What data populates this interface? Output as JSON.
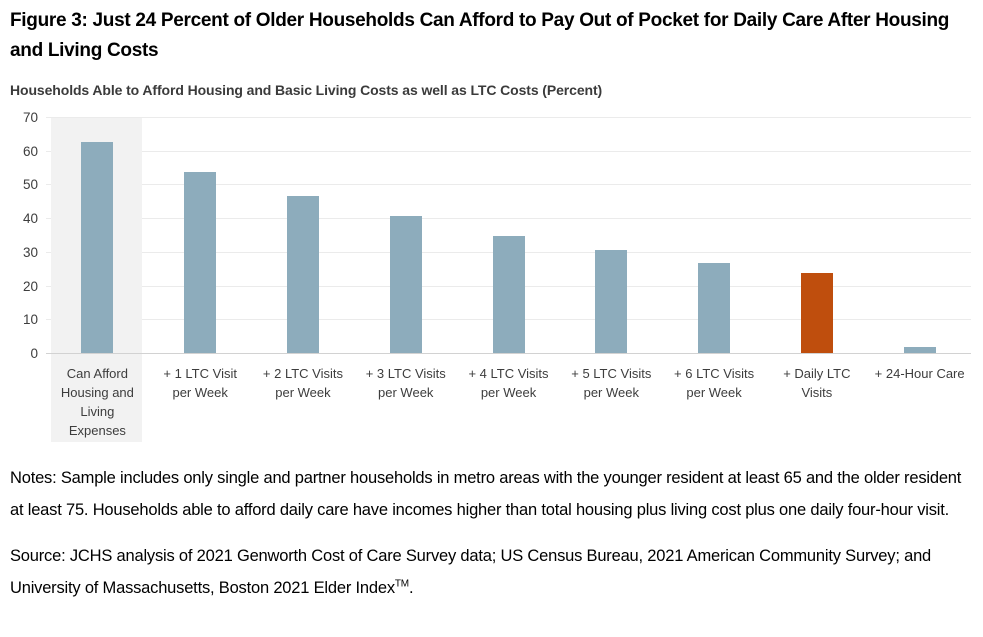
{
  "title": "Figure 3: Just 24 Percent of Older Households Can Afford to Pay Out of Pocket for Daily Care After Housing and Living Costs",
  "subtitle": "Households Able to Afford Housing and Basic Living Costs as well as LTC Costs (Percent)",
  "chart_data": {
    "type": "bar",
    "title": "Households Able to Afford Housing and Basic Living Costs as well as LTC Costs (Percent)",
    "categories": [
      "Can Afford Housing and Living Expenses",
      "+ 1 LTC Visit per Week",
      "+ 2 LTC Visits per Week",
      "+ 3 LTC Visits per Week",
      "+ 4 LTC Visits per Week",
      "+ 5 LTC Visits per Week",
      "+ 6 LTC Visits per Week",
      "+ Daily LTC Visits",
      "+ 24-Hour Care"
    ],
    "values": [
      63,
      54,
      47,
      41,
      35,
      31,
      27,
      24,
      2
    ],
    "xlabel": "",
    "ylabel": "",
    "ylim": [
      0,
      70
    ],
    "ytick_interval": 10,
    "yticks": [
      0,
      10,
      20,
      30,
      40,
      50,
      60,
      70
    ],
    "grid": true,
    "legend": "none",
    "bar_color": "#8dacbc",
    "highlight_bar_color": "#bf4e0d",
    "highlight_index": 7,
    "shaded_category_index": 0,
    "shaded_band_color": "#f2f2f2"
  },
  "notes": "Notes: Sample includes only single and partner households in metro areas with the younger resident at least 65 and the older resident at least 75. Households able to afford daily care have incomes higher than total housing plus living cost plus one daily four-hour visit.",
  "source": {
    "prefix": "Source: JCHS analysis of 2021 Genworth Cost of Care Survey data; US Census Bureau, 2021 American Community Survey; and University of Massachusetts, Boston 2021 Elder Index",
    "superscript": "TM",
    "suffix": "."
  }
}
